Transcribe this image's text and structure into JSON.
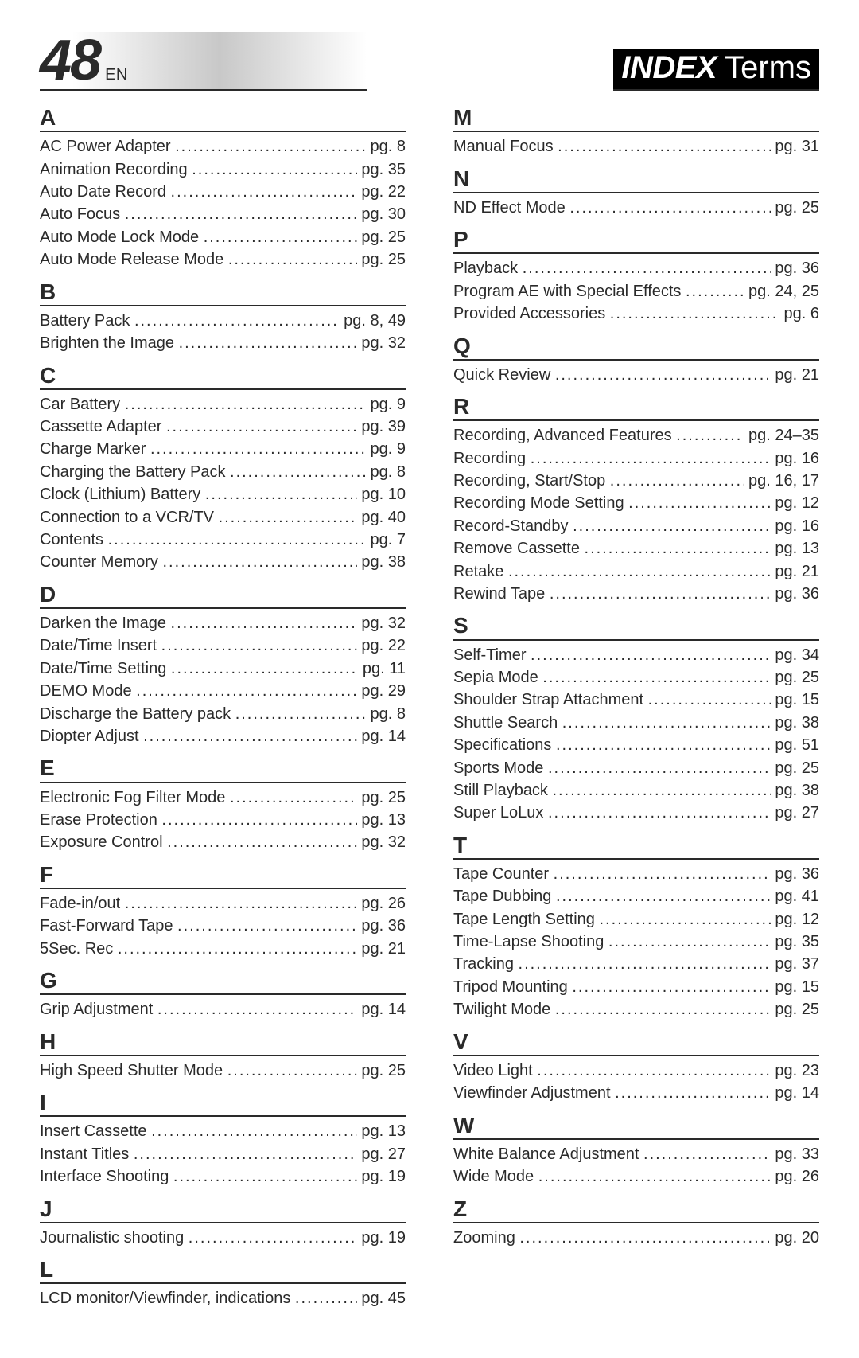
{
  "header": {
    "page_number": "48",
    "lang": "EN",
    "title_main": "INDEX",
    "title_sub": "Terms"
  },
  "columns": [
    [
      {
        "letter": "A",
        "entries": [
          {
            "term": "AC Power Adapter",
            "pg": "pg. 8"
          },
          {
            "term": "Animation Recording",
            "pg": "pg. 35"
          },
          {
            "term": "Auto Date Record",
            "pg": "pg. 22"
          },
          {
            "term": "Auto Focus",
            "pg": "pg. 30"
          },
          {
            "term": "Auto Mode Lock Mode",
            "pg": "pg. 25"
          },
          {
            "term": "Auto Mode Release Mode",
            "pg": "pg. 25"
          }
        ]
      },
      {
        "letter": "B",
        "entries": [
          {
            "term": "Battery Pack",
            "pg": "pg. 8, 49"
          },
          {
            "term": "Brighten the Image",
            "pg": "pg. 32"
          }
        ]
      },
      {
        "letter": "C",
        "entries": [
          {
            "term": "Car Battery",
            "pg": "pg. 9"
          },
          {
            "term": "Cassette Adapter",
            "pg": "pg. 39"
          },
          {
            "term": "Charge Marker",
            "pg": "pg. 9"
          },
          {
            "term": "Charging the Battery Pack",
            "pg": "pg. 8"
          },
          {
            "term": "Clock (Lithium) Battery",
            "pg": "pg. 10"
          },
          {
            "term": "Connection to a VCR/TV",
            "pg": "pg. 40"
          },
          {
            "term": "Contents",
            "pg": "pg. 7"
          },
          {
            "term": "Counter Memory",
            "pg": "pg. 38"
          }
        ]
      },
      {
        "letter": "D",
        "entries": [
          {
            "term": "Darken the Image",
            "pg": "pg. 32"
          },
          {
            "term": "Date/Time Insert",
            "pg": "pg. 22"
          },
          {
            "term": "Date/Time Setting",
            "pg": "pg. 11"
          },
          {
            "term": "DEMO Mode",
            "pg": "pg. 29"
          },
          {
            "term": "Discharge the Battery pack",
            "pg": "pg. 8"
          },
          {
            "term": "Diopter Adjust",
            "pg": "pg. 14"
          }
        ]
      },
      {
        "letter": "E",
        "entries": [
          {
            "term": "Electronic Fog Filter Mode",
            "pg": "pg. 25"
          },
          {
            "term": "Erase Protection",
            "pg": "pg. 13"
          },
          {
            "term": "Exposure Control",
            "pg": "pg. 32"
          }
        ]
      },
      {
        "letter": "F",
        "entries": [
          {
            "term": "Fade-in/out",
            "pg": "pg. 26"
          },
          {
            "term": "Fast-Forward Tape",
            "pg": "pg. 36"
          },
          {
            "term": "5Sec. Rec",
            "pg": "pg. 21"
          }
        ]
      },
      {
        "letter": "G",
        "entries": [
          {
            "term": "Grip Adjustment",
            "pg": "pg. 14"
          }
        ]
      },
      {
        "letter": "H",
        "entries": [
          {
            "term": "High Speed Shutter Mode",
            "pg": "pg. 25"
          }
        ]
      },
      {
        "letter": "I",
        "entries": [
          {
            "term": "Insert Cassette",
            "pg": "pg. 13"
          },
          {
            "term": "Instant Titles",
            "pg": "pg. 27"
          },
          {
            "term": "Interface Shooting",
            "pg": "pg. 19"
          }
        ]
      },
      {
        "letter": "J",
        "entries": [
          {
            "term": "Journalistic shooting",
            "pg": "pg. 19"
          }
        ]
      },
      {
        "letter": "L",
        "entries": [
          {
            "term": "LCD monitor/Viewfinder, indications",
            "pg": "pg. 45"
          }
        ]
      }
    ],
    [
      {
        "letter": "M",
        "entries": [
          {
            "term": "Manual Focus",
            "pg": "pg. 31"
          }
        ]
      },
      {
        "letter": "N",
        "entries": [
          {
            "term": "ND Effect Mode",
            "pg": "pg. 25"
          }
        ]
      },
      {
        "letter": "P",
        "entries": [
          {
            "term": "Playback",
            "pg": "pg. 36"
          },
          {
            "term": "Program AE with Special Effects",
            "pg": "pg. 24, 25"
          },
          {
            "term": "Provided Accessories",
            "pg": "pg. 6"
          }
        ]
      },
      {
        "letter": "Q",
        "entries": [
          {
            "term": "Quick Review",
            "pg": "pg. 21"
          }
        ]
      },
      {
        "letter": "R",
        "entries": [
          {
            "term": "Recording, Advanced Features",
            "pg": "pg. 24–35"
          },
          {
            "term": "Recording",
            "pg": "pg. 16"
          },
          {
            "term": "Recording, Start/Stop",
            "pg": "pg. 16, 17"
          },
          {
            "term": "Recording Mode Setting",
            "pg": "pg. 12"
          },
          {
            "term": "Record-Standby",
            "pg": "pg. 16"
          },
          {
            "term": "Remove Cassette",
            "pg": "pg. 13"
          },
          {
            "term": "Retake",
            "pg": "pg. 21"
          },
          {
            "term": "Rewind Tape",
            "pg": "pg. 36"
          }
        ]
      },
      {
        "letter": "S",
        "entries": [
          {
            "term": "Self-Timer",
            "pg": "pg. 34"
          },
          {
            "term": "Sepia Mode",
            "pg": "pg. 25"
          },
          {
            "term": "Shoulder Strap Attachment",
            "pg": "pg. 15"
          },
          {
            "term": "Shuttle Search",
            "pg": "pg. 38"
          },
          {
            "term": "Specifications",
            "pg": "pg. 51"
          },
          {
            "term": "Sports Mode",
            "pg": "pg. 25"
          },
          {
            "term": "Still Playback",
            "pg": "pg. 38"
          },
          {
            "term": "Super LoLux",
            "pg": "pg. 27"
          }
        ]
      },
      {
        "letter": "T",
        "entries": [
          {
            "term": "Tape Counter",
            "pg": "pg. 36"
          },
          {
            "term": "Tape Dubbing",
            "pg": "pg. 41"
          },
          {
            "term": "Tape Length Setting",
            "pg": "pg. 12"
          },
          {
            "term": "Time-Lapse Shooting",
            "pg": "pg. 35"
          },
          {
            "term": "Tracking",
            "pg": "pg. 37"
          },
          {
            "term": "Tripod Mounting",
            "pg": "pg. 15"
          },
          {
            "term": "Twilight Mode",
            "pg": "pg. 25"
          }
        ]
      },
      {
        "letter": "V",
        "entries": [
          {
            "term": "Video Light",
            "pg": "pg. 23"
          },
          {
            "term": "Viewfinder Adjustment",
            "pg": "pg. 14"
          }
        ]
      },
      {
        "letter": "W",
        "entries": [
          {
            "term": "White Balance Adjustment",
            "pg": "pg. 33"
          },
          {
            "term": "Wide Mode",
            "pg": "pg. 26"
          }
        ]
      },
      {
        "letter": "Z",
        "entries": [
          {
            "term": "Zooming",
            "pg": "pg. 20"
          }
        ]
      }
    ]
  ]
}
